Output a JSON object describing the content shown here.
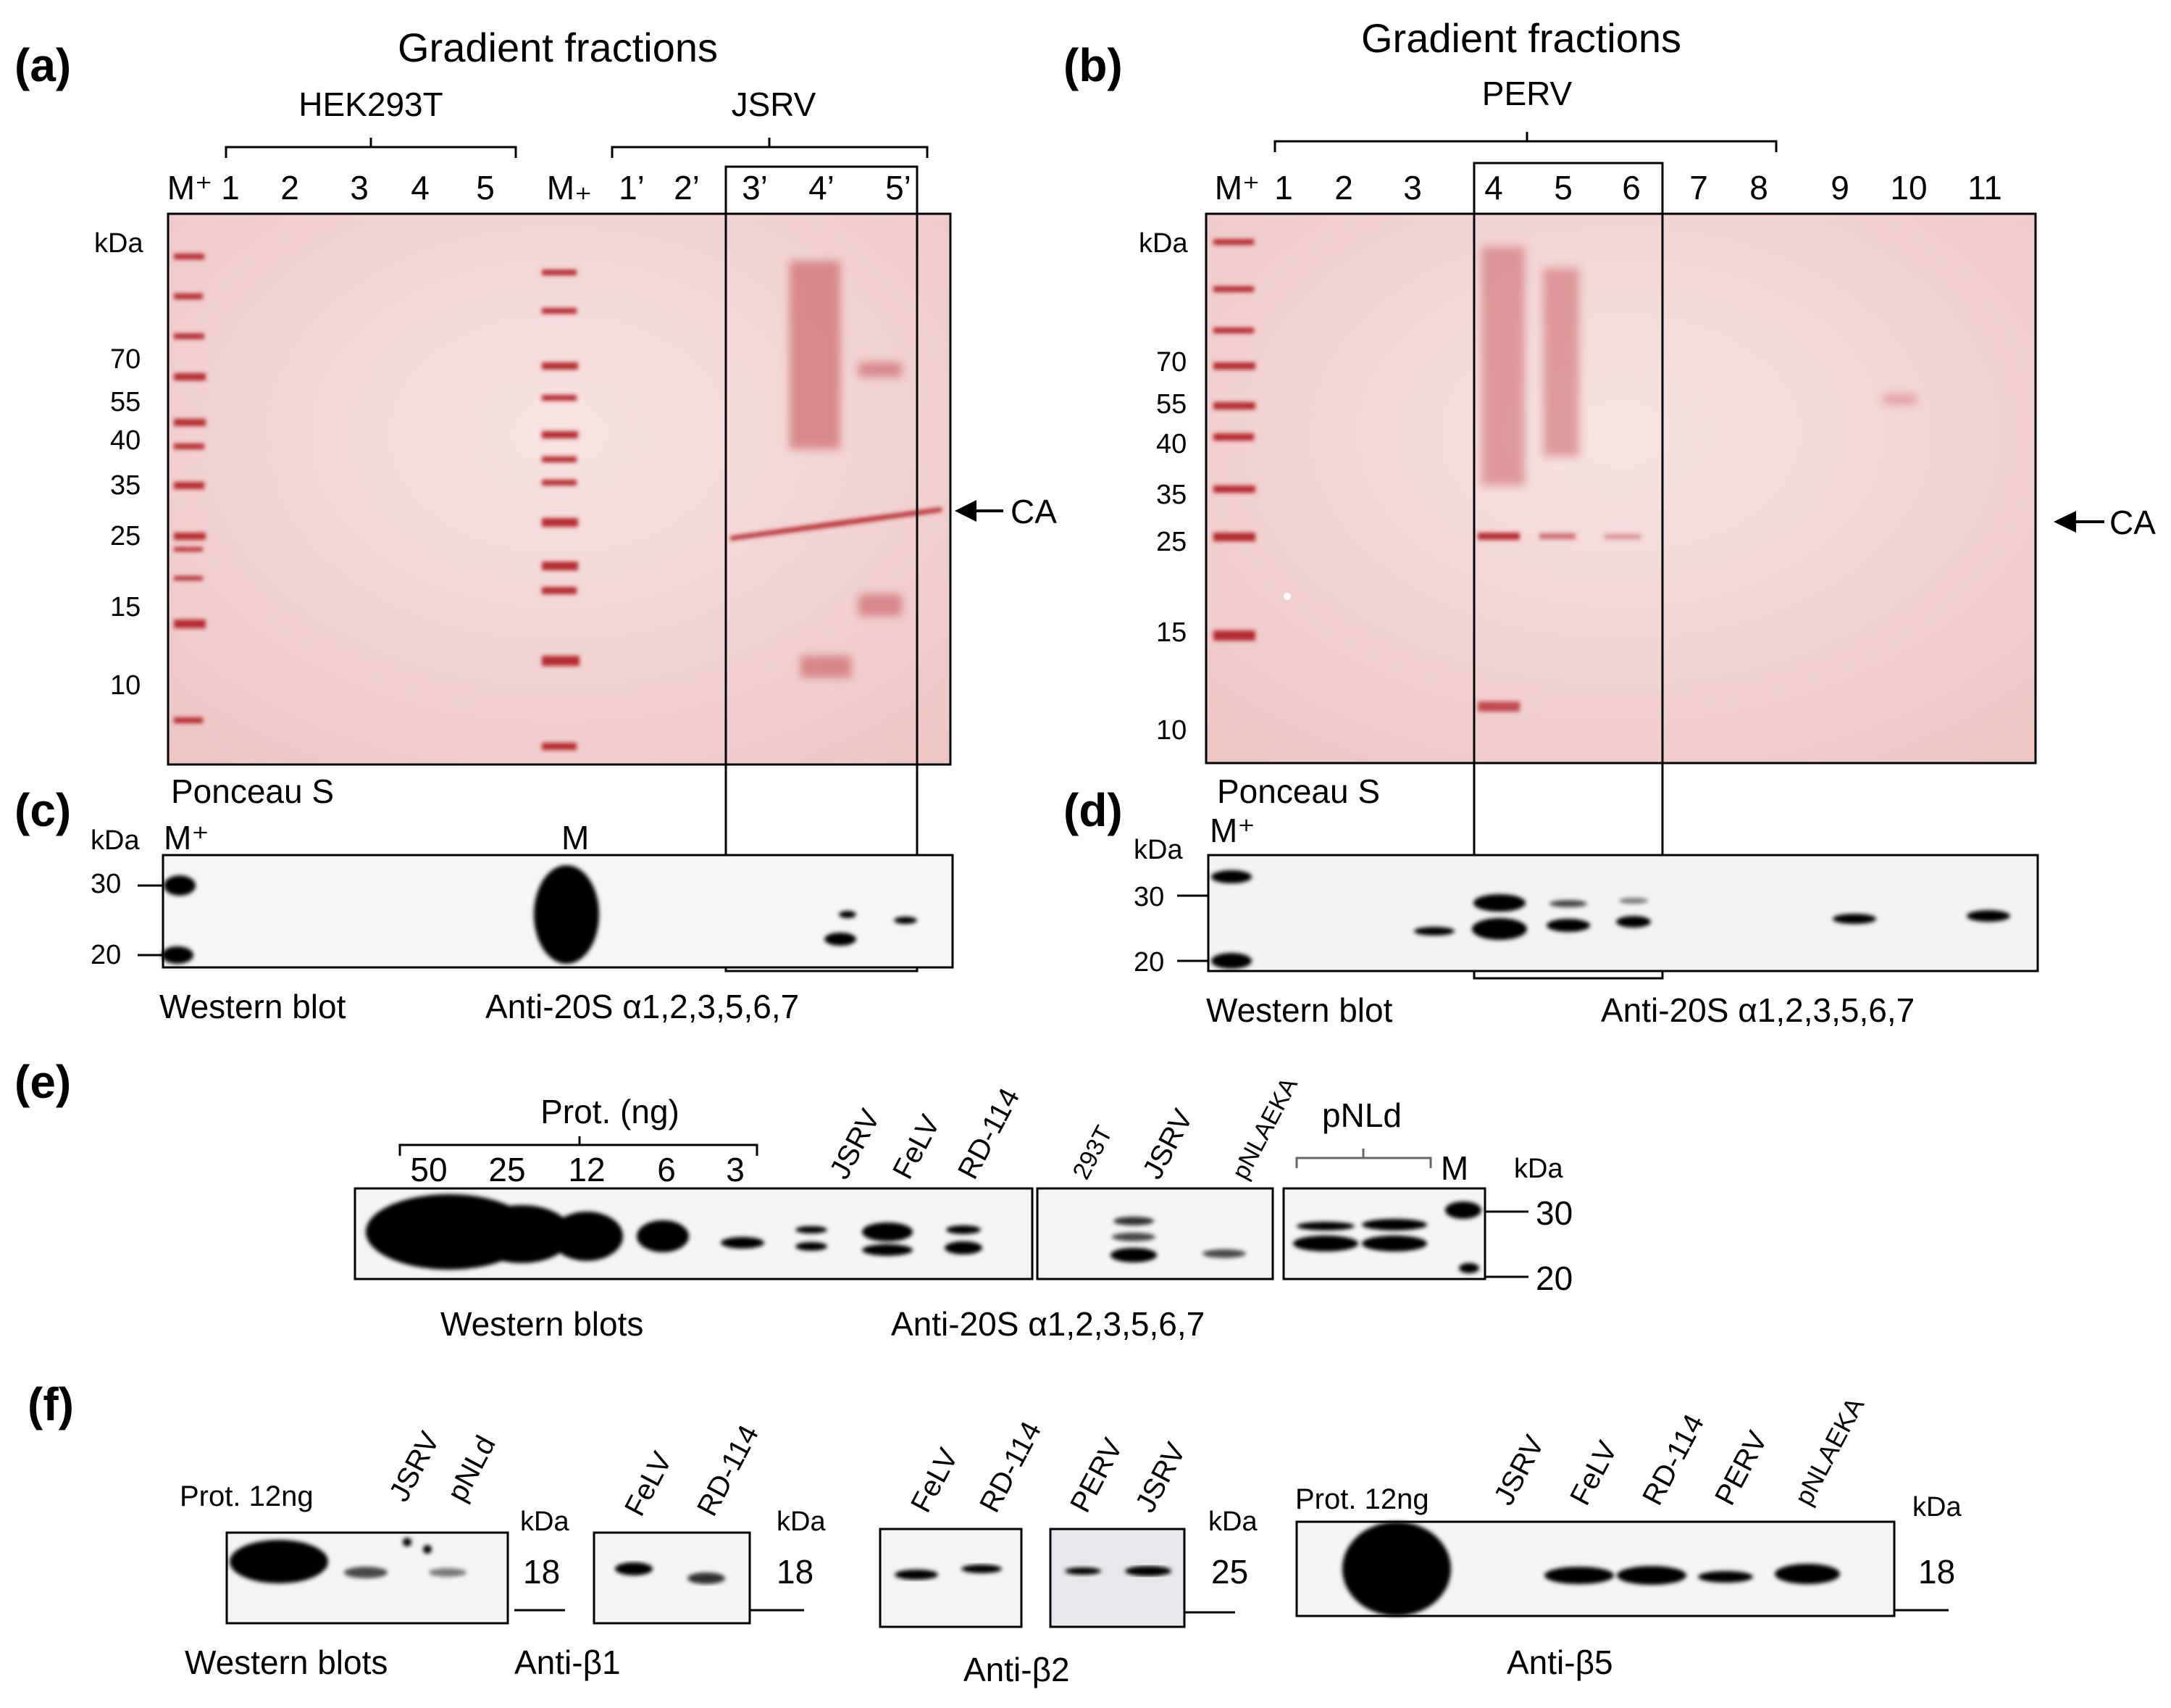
{
  "panels": {
    "a": {
      "label": "(a)",
      "title": "Gradient fractions",
      "groups": [
        {
          "name": "HEK293T"
        },
        {
          "name": "JSRV"
        }
      ],
      "lanes": [
        "M⁺",
        "1",
        "2",
        "3",
        "4",
        "5",
        "M₊",
        "1’",
        "2’",
        "3’",
        "4’",
        "5’"
      ],
      "kda_label": "kDa",
      "markers": [
        "70",
        "55",
        "40",
        "35",
        "25",
        "15",
        "10"
      ],
      "arrow_label": "CA",
      "stain": "Ponceau S"
    },
    "b": {
      "label": "(b)",
      "title": "Gradient fractions",
      "group": "PERV",
      "lanes": [
        "M⁺",
        "1",
        "2",
        "3",
        "4",
        "5",
        "6",
        "7",
        "8",
        "9",
        "10",
        "11"
      ],
      "kda_label": "kDa",
      "markers": [
        "70",
        "55",
        "40",
        "35",
        "25",
        "15",
        "10"
      ],
      "arrow_label": "CA",
      "stain": "Ponceau S"
    },
    "c": {
      "label": "(c)",
      "kda_label": "kDa",
      "lanes": [
        "M⁺",
        "M"
      ],
      "markers": [
        "30",
        "20"
      ],
      "method": "Western blot",
      "antibody": "Anti-20S α1,2,3,5,6,7"
    },
    "d": {
      "label": "(d)",
      "kda_label": "kDa",
      "lanes": [
        "M⁺"
      ],
      "markers": [
        "30",
        "20"
      ],
      "method": "Western blot",
      "antibody": "Anti-20S α1,2,3,5,6,7"
    },
    "e": {
      "label": "(e)",
      "prot_label": "Prot. (ng)",
      "prot_lanes": [
        "50",
        "25",
        "12",
        "6",
        "3"
      ],
      "lanes1": [
        "JSRV",
        "FeLV",
        "RD-114"
      ],
      "lanes2": [
        "293T",
        "JSRV",
        "pNLAEKA"
      ],
      "group3": "pNLd",
      "lane_m": "M",
      "kda_label": "kDa",
      "markers": [
        "30",
        "20"
      ],
      "method": "Western blots",
      "antibody": "Anti-20S α1,2,3,5,6,7"
    },
    "f": {
      "label": "(f)",
      "method": "Western blots",
      "blot1": {
        "prot": "Prot. 12ng",
        "lanes": [
          "JSRV",
          "pNLd"
        ],
        "kda_label": "kDa",
        "marker": "18"
      },
      "blot2": {
        "lanes": [
          "FeLV",
          "RD-114"
        ],
        "kda_label": "kDa",
        "marker": "18",
        "antibody": "Anti-β1"
      },
      "blot3": {
        "lanes": [
          "FeLV",
          "RD-114",
          "PERV",
          "JSRV"
        ],
        "kda_label": "kDa",
        "marker": "25",
        "antibody": "Anti-β2"
      },
      "blot4": {
        "prot": "Prot. 12ng",
        "lanes": [
          "JSRV",
          "FeLV",
          "RD-114",
          "PERV",
          "pNLAEKA"
        ],
        "kda_label": "kDa",
        "marker": "18",
        "antibody": "Anti-β5"
      }
    }
  },
  "colors": {
    "gel": "#f3d5d5",
    "band": "#b52a2f",
    "blot": "#f4f4f4",
    "ink": "#000000"
  }
}
